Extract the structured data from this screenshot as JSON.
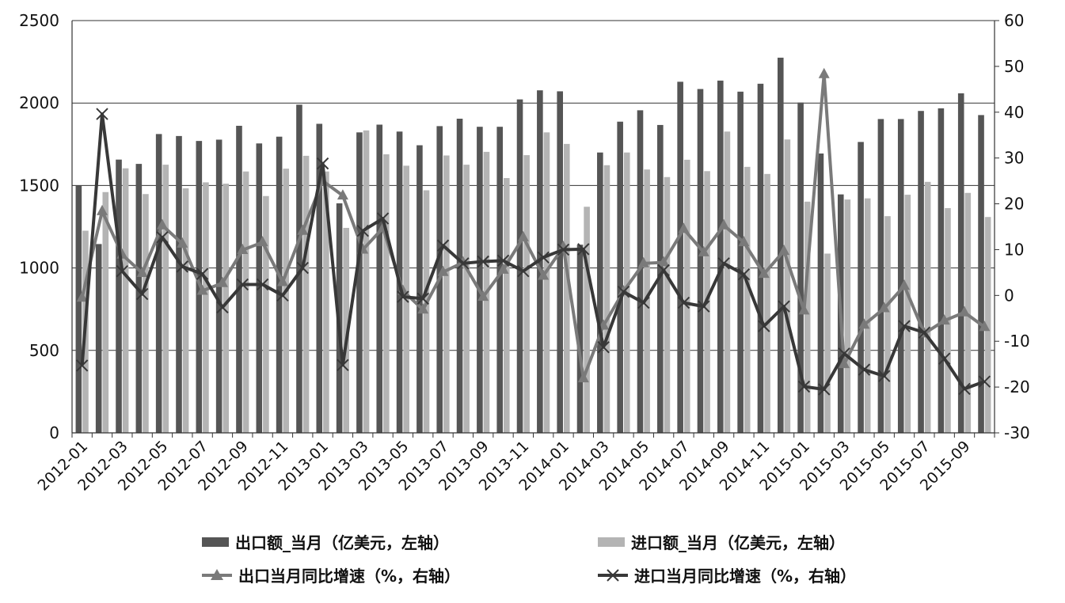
{
  "chart_data": {
    "type": "bar",
    "categories": [
      "2012-01",
      "2012-02",
      "2012-03",
      "2012-04",
      "2012-05",
      "2012-06",
      "2012-07",
      "2012-08",
      "2012-09",
      "2012-10",
      "2012-11",
      "2012-12",
      "2013-01",
      "2013-02",
      "2013-03",
      "2013-04",
      "2013-05",
      "2013-06",
      "2013-07",
      "2013-08",
      "2013-09",
      "2013-10",
      "2013-11",
      "2013-12",
      "2014-01",
      "2014-02",
      "2014-03",
      "2014-04",
      "2014-05",
      "2014-06",
      "2014-07",
      "2014-08",
      "2014-09",
      "2014-10",
      "2014-11",
      "2014-12",
      "2015-01",
      "2015-02",
      "2015-03",
      "2015-04",
      "2015-05",
      "2015-06",
      "2015-07",
      "2015-08",
      "2015-09",
      "2015-10"
    ],
    "x_tick_labels": [
      "2012-01",
      "2012-03",
      "2012-05",
      "2012-07",
      "2012-09",
      "2012-11",
      "2013-01",
      "2013-03",
      "2013-05",
      "2013-07",
      "2013-09",
      "2013-11",
      "2014-01",
      "2014-03",
      "2014-05",
      "2014-07",
      "2014-09",
      "2014-11",
      "2015-01",
      "2015-03",
      "2015-05",
      "2015-07",
      "2015-09"
    ],
    "left_axis": {
      "ylim": [
        0,
        2500
      ],
      "ticks": [
        "0",
        "500",
        "1000",
        "1500",
        "2000",
        "2500"
      ]
    },
    "right_axis": {
      "ylim": [
        -30,
        60
      ],
      "ticks": [
        "-30",
        "-20",
        "-10",
        "0",
        "10",
        "20",
        "30",
        "40",
        "50",
        "60"
      ]
    },
    "grid": true,
    "legend_position": "bottom",
    "series": [
      {
        "name": "出口额_当月（亿美元，左轴）",
        "kind": "bar",
        "axis": "left",
        "color": "#555555",
        "values": [
          1500,
          1145,
          1657,
          1631,
          1812,
          1800,
          1770,
          1778,
          1862,
          1755,
          1796,
          1990,
          1874,
          1392,
          1822,
          1869,
          1827,
          1744,
          1860,
          1905,
          1856,
          1856,
          2022,
          2077,
          2071,
          1141,
          1700,
          1887,
          1956,
          1867,
          2129,
          2085,
          2136,
          2069,
          2117,
          2275,
          2003,
          1694,
          1446,
          1764,
          1903,
          1903,
          1952,
          1968,
          2059,
          1927
        ]
      },
      {
        "name": "进口额_当月（亿美元，左轴）",
        "kind": "bar",
        "axis": "left",
        "color": "#b4b4b4",
        "values": [
          1226,
          1460,
          1604,
          1448,
          1626,
          1483,
          1519,
          1511,
          1585,
          1436,
          1602,
          1680,
          1585,
          1243,
          1834,
          1689,
          1620,
          1471,
          1682,
          1626,
          1704,
          1545,
          1684,
          1822,
          1752,
          1371,
          1623,
          1700,
          1597,
          1551,
          1656,
          1587,
          1827,
          1613,
          1570,
          1779,
          1402,
          1087,
          1415,
          1422,
          1314,
          1444,
          1522,
          1363,
          1455,
          1309
        ]
      },
      {
        "name": "出口当月同比增速（%，右轴）",
        "kind": "line",
        "axis": "right",
        "color": "#7a7a7a",
        "marker": "triangle",
        "values": [
          -0.5,
          18.4,
          8.9,
          4.9,
          15.3,
          11.3,
          1.0,
          2.7,
          9.9,
          11.6,
          2.9,
          14.1,
          25.0,
          21.8,
          10.0,
          14.7,
          1.0,
          -3.1,
          5.1,
          7.2,
          -0.3,
          5.6,
          12.7,
          4.3,
          10.6,
          -18.1,
          -6.6,
          0.9,
          7.0,
          7.2,
          14.5,
          9.4,
          15.3,
          11.6,
          4.7,
          9.7,
          -3.3,
          48.3,
          -15.0,
          -6.4,
          -2.8,
          2.1,
          -8.3,
          -5.5,
          -3.7,
          -6.9
        ]
      },
      {
        "name": "进口当月同比增速（%，右轴）",
        "kind": "line",
        "axis": "right",
        "color": "#383838",
        "marker": "x",
        "values": [
          -15.3,
          39.6,
          5.3,
          0.3,
          12.7,
          6.3,
          4.7,
          -2.6,
          2.4,
          2.4,
          0.0,
          6.0,
          28.8,
          -15.2,
          14.1,
          16.8,
          -0.3,
          -0.7,
          10.9,
          7.0,
          7.4,
          7.6,
          5.3,
          8.3,
          10.0,
          10.1,
          -11.3,
          0.8,
          -1.6,
          5.5,
          -1.6,
          -2.4,
          7.0,
          4.6,
          -6.7,
          -2.4,
          -19.9,
          -20.5,
          -12.7,
          -16.2,
          -17.6,
          -6.7,
          -8.1,
          -13.8,
          -20.4,
          -18.8
        ]
      }
    ]
  }
}
